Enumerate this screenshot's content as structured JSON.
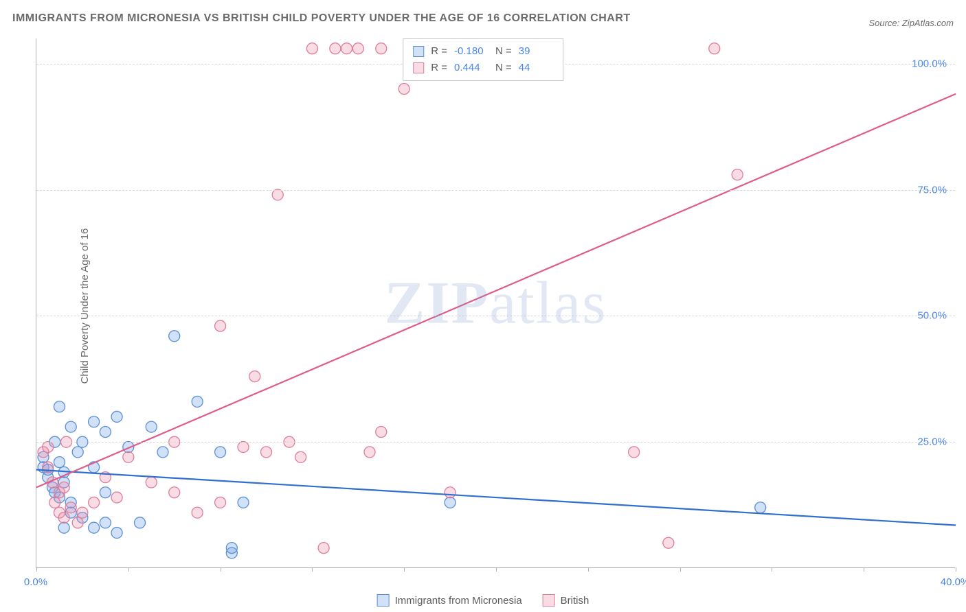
{
  "title": "IMMIGRANTS FROM MICRONESIA VS BRITISH CHILD POVERTY UNDER THE AGE OF 16 CORRELATION CHART",
  "source_prefix": "Source: ",
  "source": "ZipAtlas.com",
  "y_axis_label": "Child Poverty Under the Age of 16",
  "watermark_left": "ZIP",
  "watermark_right": "atlas",
  "chart": {
    "type": "scatter",
    "xlim": [
      0,
      40
    ],
    "ylim": [
      0,
      105
    ],
    "xticks": [
      0,
      4,
      8,
      12,
      16,
      20,
      24,
      28,
      32,
      36,
      40
    ],
    "xtick_labels": {
      "0": "0.0%",
      "40": "40.0%"
    },
    "yticks": [
      25,
      50,
      75,
      100
    ],
    "ytick_labels": {
      "25": "25.0%",
      "50": "50.0%",
      "75": "75.0%",
      "100": "100.0%"
    },
    "background_color": "#ffffff",
    "grid_color": "#d8d8d8",
    "axis_color": "#b0b0b0",
    "tick_label_color": "#4a86e8",
    "marker_radius": 8,
    "marker_stroke_width": 1.3,
    "line_width": 2.2,
    "series": [
      {
        "name": "Immigrants from Micronesia",
        "fill": "rgba(123,169,232,0.35)",
        "stroke": "#5a8fd8",
        "line_color": "#2f6fd0",
        "R": "-0.180",
        "N": "39",
        "trend": {
          "x1": 0,
          "y1": 19.5,
          "x2": 40,
          "y2": 8.5
        },
        "points": [
          [
            0.3,
            20
          ],
          [
            0.3,
            22
          ],
          [
            0.5,
            18
          ],
          [
            0.5,
            19.5
          ],
          [
            0.7,
            16
          ],
          [
            0.8,
            25
          ],
          [
            0.8,
            15
          ],
          [
            1.0,
            21
          ],
          [
            1.0,
            14
          ],
          [
            1.0,
            32
          ],
          [
            1.2,
            19
          ],
          [
            1.2,
            17
          ],
          [
            1.2,
            8
          ],
          [
            1.5,
            13
          ],
          [
            1.5,
            11
          ],
          [
            1.5,
            28
          ],
          [
            1.8,
            23
          ],
          [
            2.0,
            10
          ],
          [
            2.0,
            25
          ],
          [
            2.5,
            20
          ],
          [
            2.5,
            8
          ],
          [
            2.5,
            29
          ],
          [
            3.0,
            27
          ],
          [
            3.0,
            9
          ],
          [
            3.0,
            15
          ],
          [
            3.5,
            30
          ],
          [
            3.5,
            7
          ],
          [
            4.0,
            24
          ],
          [
            4.5,
            9
          ],
          [
            5.0,
            28
          ],
          [
            5.5,
            23
          ],
          [
            6.0,
            46
          ],
          [
            7.0,
            33
          ],
          [
            8.0,
            23
          ],
          [
            8.5,
            3
          ],
          [
            8.5,
            4
          ],
          [
            9.0,
            13
          ],
          [
            18.0,
            13
          ],
          [
            31.5,
            12
          ]
        ]
      },
      {
        "name": "British",
        "fill": "rgba(238,140,170,0.30)",
        "stroke": "#de7d9a",
        "line_color": "#e05a8a",
        "R": "0.444",
        "N": "44",
        "trend": {
          "x1": 0,
          "y1": 16,
          "x2": 40,
          "y2": 94
        },
        "points": [
          [
            0.3,
            23
          ],
          [
            0.5,
            20
          ],
          [
            0.5,
            24
          ],
          [
            0.7,
            17
          ],
          [
            0.8,
            13
          ],
          [
            1.0,
            11
          ],
          [
            1.0,
            15
          ],
          [
            1.2,
            10
          ],
          [
            1.2,
            16
          ],
          [
            1.3,
            25
          ],
          [
            1.5,
            12
          ],
          [
            1.8,
            9
          ],
          [
            2.0,
            11
          ],
          [
            2.5,
            13
          ],
          [
            3.0,
            18
          ],
          [
            3.5,
            14
          ],
          [
            4.0,
            22
          ],
          [
            5.0,
            17
          ],
          [
            6.0,
            15
          ],
          [
            6.0,
            25
          ],
          [
            7.0,
            11
          ],
          [
            8.0,
            48
          ],
          [
            8.0,
            13
          ],
          [
            9.0,
            24
          ],
          [
            9.5,
            38
          ],
          [
            10.0,
            23
          ],
          [
            10.5,
            74
          ],
          [
            11.0,
            25
          ],
          [
            11.5,
            22
          ],
          [
            12.0,
            103
          ],
          [
            12.5,
            4
          ],
          [
            13.0,
            103
          ],
          [
            13.5,
            103
          ],
          [
            14.0,
            103
          ],
          [
            14.5,
            23
          ],
          [
            15.0,
            103
          ],
          [
            15.0,
            27
          ],
          [
            16.0,
            95
          ],
          [
            18.0,
            15
          ],
          [
            20.0,
            103
          ],
          [
            26.0,
            23
          ],
          [
            27.5,
            5
          ],
          [
            29.5,
            103
          ],
          [
            30.5,
            78
          ]
        ]
      }
    ]
  },
  "stat_labels": {
    "R": "R =",
    "N": "N ="
  }
}
